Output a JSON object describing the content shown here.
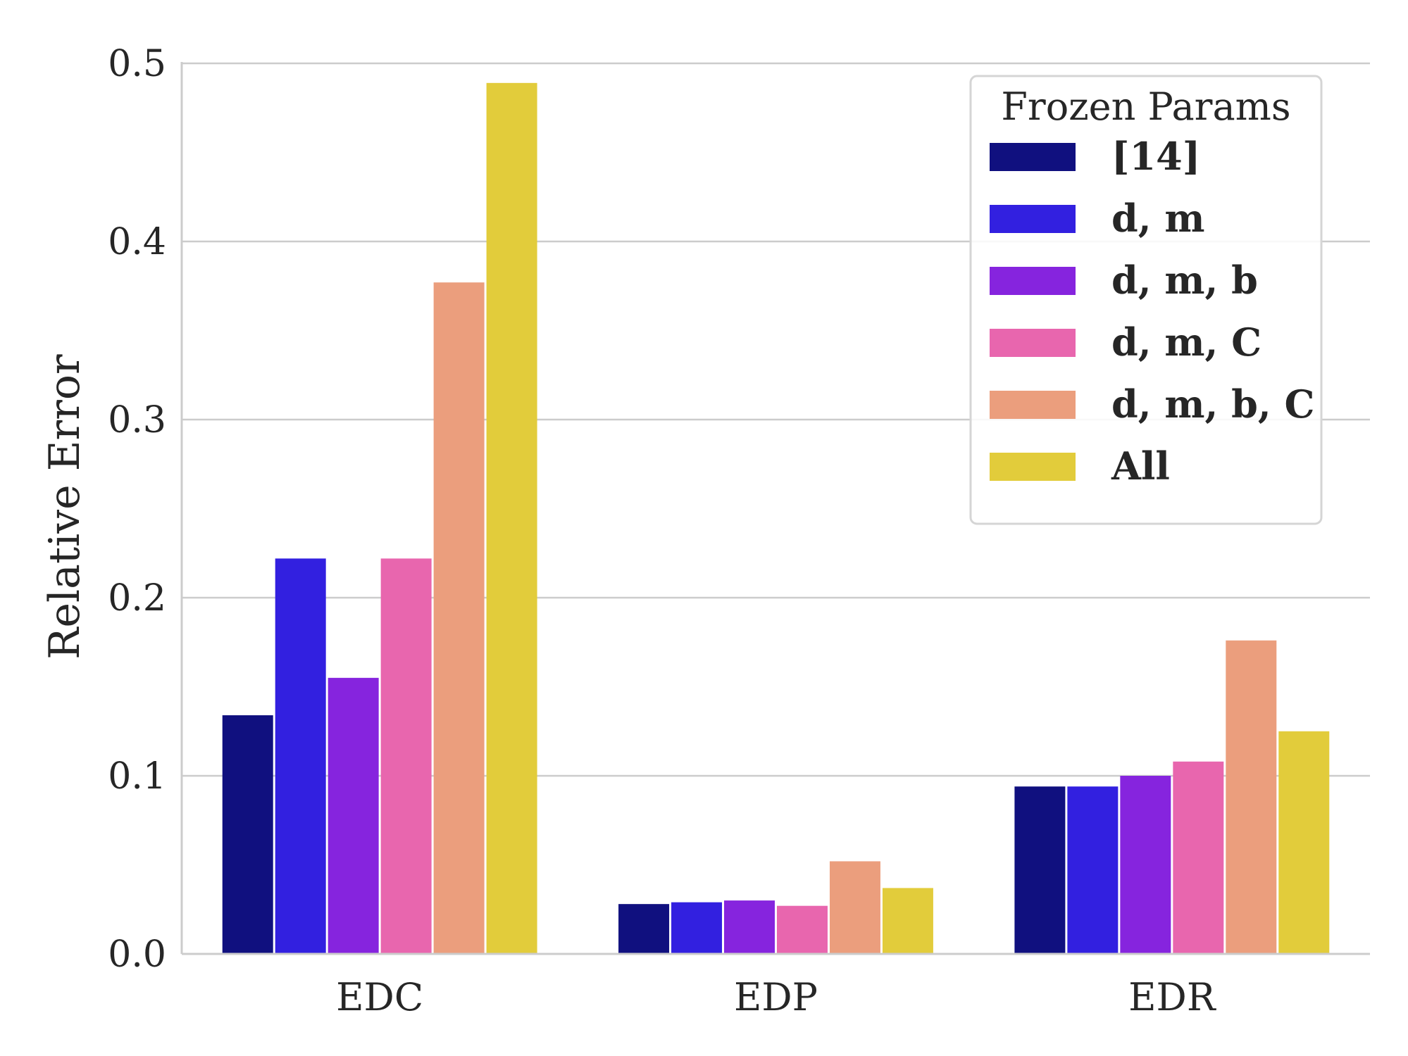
{
  "chart_data": {
    "type": "bar",
    "title": "",
    "xlabel": "",
    "ylabel": "Relative Error",
    "ylim": [
      0,
      0.5
    ],
    "yticks": [
      "0.0",
      "0.1",
      "0.2",
      "0.3",
      "0.4",
      "0.5"
    ],
    "grid": "horizontal",
    "categories": [
      "EDC",
      "EDP",
      "EDR"
    ],
    "legend": {
      "title": "Frozen Params",
      "position": "top-right"
    },
    "series": [
      {
        "name": "[14]",
        "color": "#10107f",
        "values": [
          0.134,
          0.028,
          0.094
        ]
      },
      {
        "name": "d, m",
        "color": "#3220e0",
        "values": [
          0.222,
          0.029,
          0.094
        ]
      },
      {
        "name": "d, m, b",
        "color": "#8624de",
        "values": [
          0.155,
          0.03,
          0.1
        ]
      },
      {
        "name": "d, m, C",
        "color": "#e866ae",
        "values": [
          0.222,
          0.027,
          0.108
        ]
      },
      {
        "name": "d, m, b, C",
        "color": "#eb9e7d",
        "values": [
          0.377,
          0.052,
          0.176
        ]
      },
      {
        "name": "All",
        "color": "#e2cc3b",
        "values": [
          0.489,
          0.037,
          0.125
        ]
      }
    ]
  }
}
